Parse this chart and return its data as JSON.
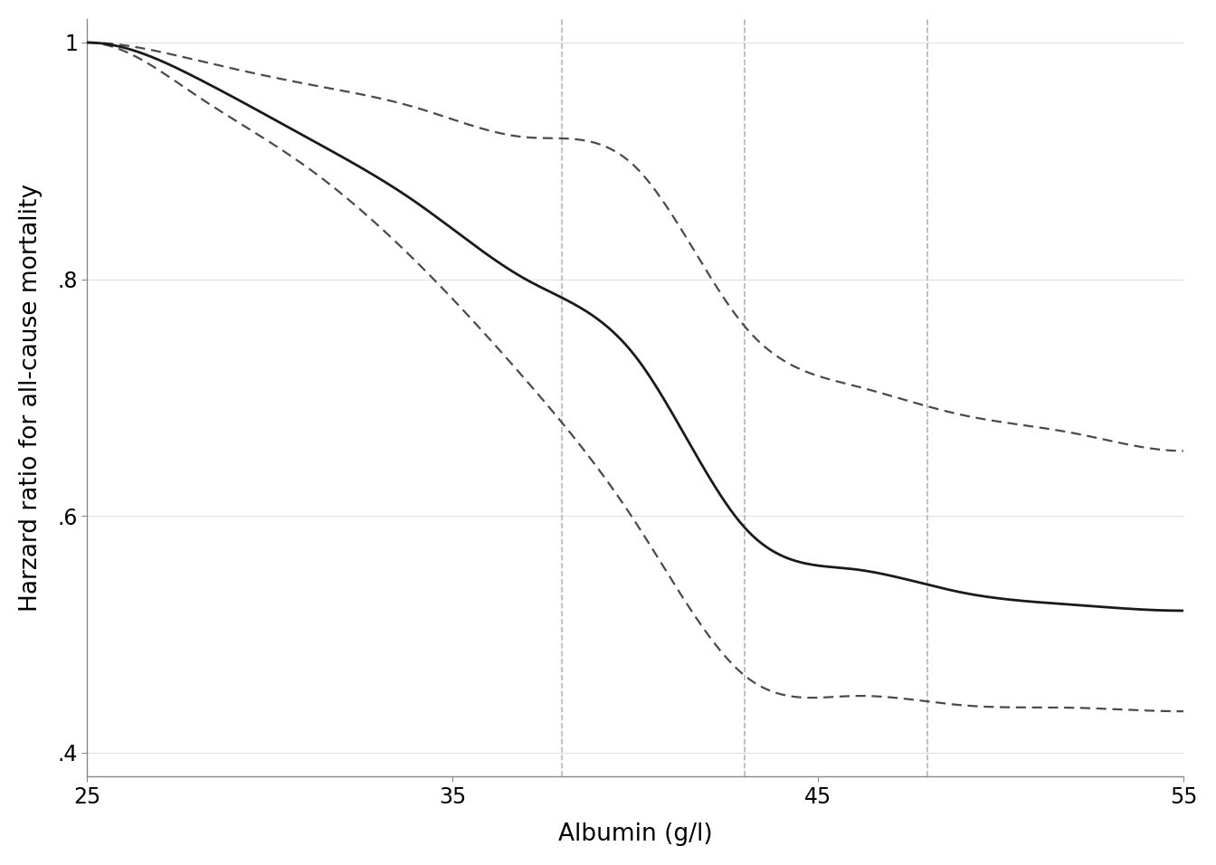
{
  "xlabel": "Albumin (g/l)",
  "ylabel": "Harzard ratio for all-cause mortality",
  "xlim": [
    25,
    55
  ],
  "ylim": [
    0.38,
    1.02
  ],
  "xticks": [
    25,
    35,
    45,
    55
  ],
  "yticks": [
    0.4,
    0.6,
    0.8,
    1.0
  ],
  "ytick_labels": [
    ".4",
    ".6",
    ".8",
    "1"
  ],
  "vlines": [
    38,
    43,
    48
  ],
  "vline_color": "#b5b5b5",
  "line_color": "#1a1a1a",
  "ci_color": "#4a4a4a",
  "background_color": "#ffffff",
  "grid_color": "#e0e0e0",
  "main_knots_x": [
    25,
    28,
    31,
    34,
    37,
    40,
    43,
    46,
    49,
    52,
    55
  ],
  "main_knots_y": [
    1.0,
    0.97,
    0.92,
    0.865,
    0.8,
    0.735,
    0.59,
    0.555,
    0.535,
    0.525,
    0.52
  ],
  "upper_knots_x": [
    25,
    28,
    31,
    34,
    37,
    40,
    43,
    46,
    49,
    52,
    55
  ],
  "upper_knots_y": [
    1.0,
    0.985,
    0.965,
    0.945,
    0.92,
    0.895,
    0.76,
    0.71,
    0.685,
    0.67,
    0.655
  ],
  "lower_knots_x": [
    25,
    28,
    31,
    34,
    37,
    40,
    43,
    46,
    49,
    52,
    55
  ],
  "lower_knots_y": [
    1.0,
    0.955,
    0.895,
    0.815,
    0.715,
    0.595,
    0.465,
    0.448,
    0.44,
    0.438,
    0.435
  ]
}
